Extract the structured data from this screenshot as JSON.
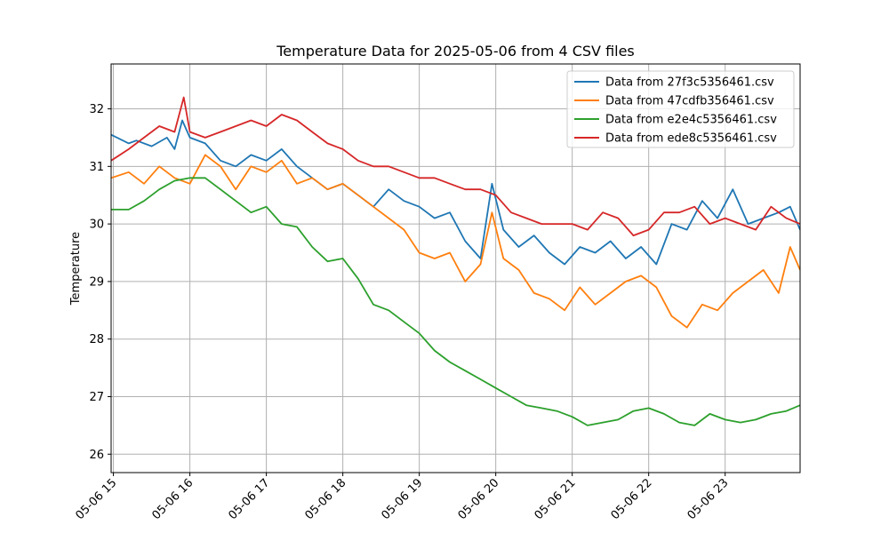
{
  "chart_data": {
    "type": "line",
    "title": "Temperature Data for 2025-05-06 from 4 CSV files",
    "xlabel": "",
    "ylabel": "Temperature",
    "xlim": [
      14.97,
      23.98
    ],
    "ylim": [
      25.68,
      32.78
    ],
    "grid": true,
    "legend_position": "upper right",
    "x_ticks": [
      {
        "value": 15,
        "label": "05-06 15"
      },
      {
        "value": 16,
        "label": "05-06 16"
      },
      {
        "value": 17,
        "label": "05-06 17"
      },
      {
        "value": 18,
        "label": "05-06 18"
      },
      {
        "value": 19,
        "label": "05-06 19"
      },
      {
        "value": 20,
        "label": "05-06 20"
      },
      {
        "value": 21,
        "label": "05-06 21"
      },
      {
        "value": 22,
        "label": "05-06 22"
      },
      {
        "value": 23,
        "label": "05-06 23"
      }
    ],
    "y_ticks": [
      26,
      27,
      28,
      29,
      30,
      31,
      32
    ],
    "series": [
      {
        "name": "Data from 27f3c5356461.csv",
        "color": "#1f77b4",
        "x": [
          14.97,
          15.2,
          15.3,
          15.5,
          15.7,
          15.8,
          15.9,
          16.0,
          16.2,
          16.4,
          16.6,
          16.8,
          17.0,
          17.2,
          17.4,
          17.6,
          17.8,
          18.0,
          18.2,
          18.4,
          18.6,
          18.8,
          19.0,
          19.2,
          19.4,
          19.6,
          19.8,
          19.95,
          20.1,
          20.3,
          20.5,
          20.7,
          20.9,
          21.1,
          21.3,
          21.5,
          21.7,
          21.9,
          22.1,
          22.3,
          22.5,
          22.7,
          22.9,
          23.1,
          23.3,
          23.5,
          23.7,
          23.85,
          23.98
        ],
        "y": [
          31.55,
          31.4,
          31.45,
          31.35,
          31.5,
          31.3,
          31.8,
          31.5,
          31.4,
          31.1,
          31.0,
          31.2,
          31.1,
          31.3,
          31.0,
          30.8,
          30.6,
          30.7,
          30.5,
          30.3,
          30.6,
          30.4,
          30.3,
          30.1,
          30.2,
          29.7,
          29.4,
          30.7,
          29.9,
          29.6,
          29.8,
          29.5,
          29.3,
          29.6,
          29.5,
          29.7,
          29.4,
          29.6,
          29.3,
          30.0,
          29.9,
          30.4,
          30.1,
          30.6,
          30.0,
          30.1,
          30.2,
          30.3,
          29.9
        ]
      },
      {
        "name": "Data from 47cdfb356461.csv",
        "color": "#ff7f0e",
        "x": [
          14.97,
          15.2,
          15.4,
          15.6,
          15.8,
          16.0,
          16.2,
          16.4,
          16.6,
          16.8,
          17.0,
          17.2,
          17.4,
          17.6,
          17.8,
          18.0,
          18.2,
          18.4,
          18.6,
          18.8,
          19.0,
          19.2,
          19.4,
          19.6,
          19.8,
          19.95,
          20.1,
          20.3,
          20.5,
          20.7,
          20.9,
          21.1,
          21.3,
          21.5,
          21.7,
          21.9,
          22.1,
          22.3,
          22.5,
          22.7,
          22.9,
          23.1,
          23.3,
          23.5,
          23.7,
          23.85,
          23.98
        ],
        "y": [
          30.8,
          30.9,
          30.7,
          31.0,
          30.8,
          30.7,
          31.2,
          31.0,
          30.6,
          31.0,
          30.9,
          31.1,
          30.7,
          30.8,
          30.6,
          30.7,
          30.5,
          30.3,
          30.1,
          29.9,
          29.5,
          29.4,
          29.5,
          29.0,
          29.3,
          30.2,
          29.4,
          29.2,
          28.8,
          28.7,
          28.5,
          28.9,
          28.6,
          28.8,
          29.0,
          29.1,
          28.9,
          28.4,
          28.2,
          28.6,
          28.5,
          28.8,
          29.0,
          29.2,
          28.8,
          29.6,
          29.2
        ]
      },
      {
        "name": "Data from e2e4c5356461.csv",
        "color": "#2ca02c",
        "x": [
          14.97,
          15.2,
          15.4,
          15.6,
          15.8,
          16.0,
          16.2,
          16.4,
          16.6,
          16.8,
          17.0,
          17.2,
          17.4,
          17.6,
          17.8,
          18.0,
          18.2,
          18.4,
          18.6,
          18.8,
          19.0,
          19.2,
          19.4,
          19.6,
          19.8,
          20.0,
          20.2,
          20.4,
          20.6,
          20.8,
          21.0,
          21.2,
          21.4,
          21.6,
          21.8,
          22.0,
          22.2,
          22.4,
          22.6,
          22.8,
          23.0,
          23.2,
          23.4,
          23.6,
          23.8,
          23.98
        ],
        "y": [
          30.25,
          30.25,
          30.4,
          30.6,
          30.75,
          30.8,
          30.8,
          30.6,
          30.4,
          30.2,
          30.3,
          30.0,
          29.95,
          29.6,
          29.35,
          29.4,
          29.05,
          28.6,
          28.5,
          28.3,
          28.1,
          27.8,
          27.6,
          27.45,
          27.3,
          27.15,
          27.0,
          26.85,
          26.8,
          26.75,
          26.65,
          26.5,
          26.55,
          26.6,
          26.75,
          26.8,
          26.7,
          26.55,
          26.5,
          26.7,
          26.6,
          26.55,
          26.6,
          26.7,
          26.75,
          26.85
        ]
      },
      {
        "name": "Data from ede8c5356461.csv",
        "color": "#d62728",
        "x": [
          14.97,
          15.2,
          15.4,
          15.6,
          15.8,
          15.92,
          16.0,
          16.2,
          16.4,
          16.6,
          16.8,
          17.0,
          17.2,
          17.4,
          17.6,
          17.8,
          18.0,
          18.2,
          18.4,
          18.6,
          18.8,
          19.0,
          19.2,
          19.4,
          19.6,
          19.8,
          20.0,
          20.2,
          20.4,
          20.6,
          20.8,
          21.0,
          21.2,
          21.4,
          21.6,
          21.8,
          22.0,
          22.2,
          22.4,
          22.6,
          22.8,
          23.0,
          23.2,
          23.4,
          23.6,
          23.8,
          23.98
        ],
        "y": [
          31.1,
          31.3,
          31.5,
          31.7,
          31.6,
          32.2,
          31.6,
          31.5,
          31.6,
          31.7,
          31.8,
          31.7,
          31.9,
          31.8,
          31.6,
          31.4,
          31.3,
          31.1,
          31.0,
          31.0,
          30.9,
          30.8,
          30.8,
          30.7,
          30.6,
          30.6,
          30.5,
          30.2,
          30.1,
          30.0,
          30.0,
          30.0,
          29.9,
          30.2,
          30.1,
          29.8,
          29.9,
          30.2,
          30.2,
          30.3,
          30.0,
          30.1,
          30.0,
          29.9,
          30.3,
          30.1,
          30.0
        ]
      }
    ]
  }
}
